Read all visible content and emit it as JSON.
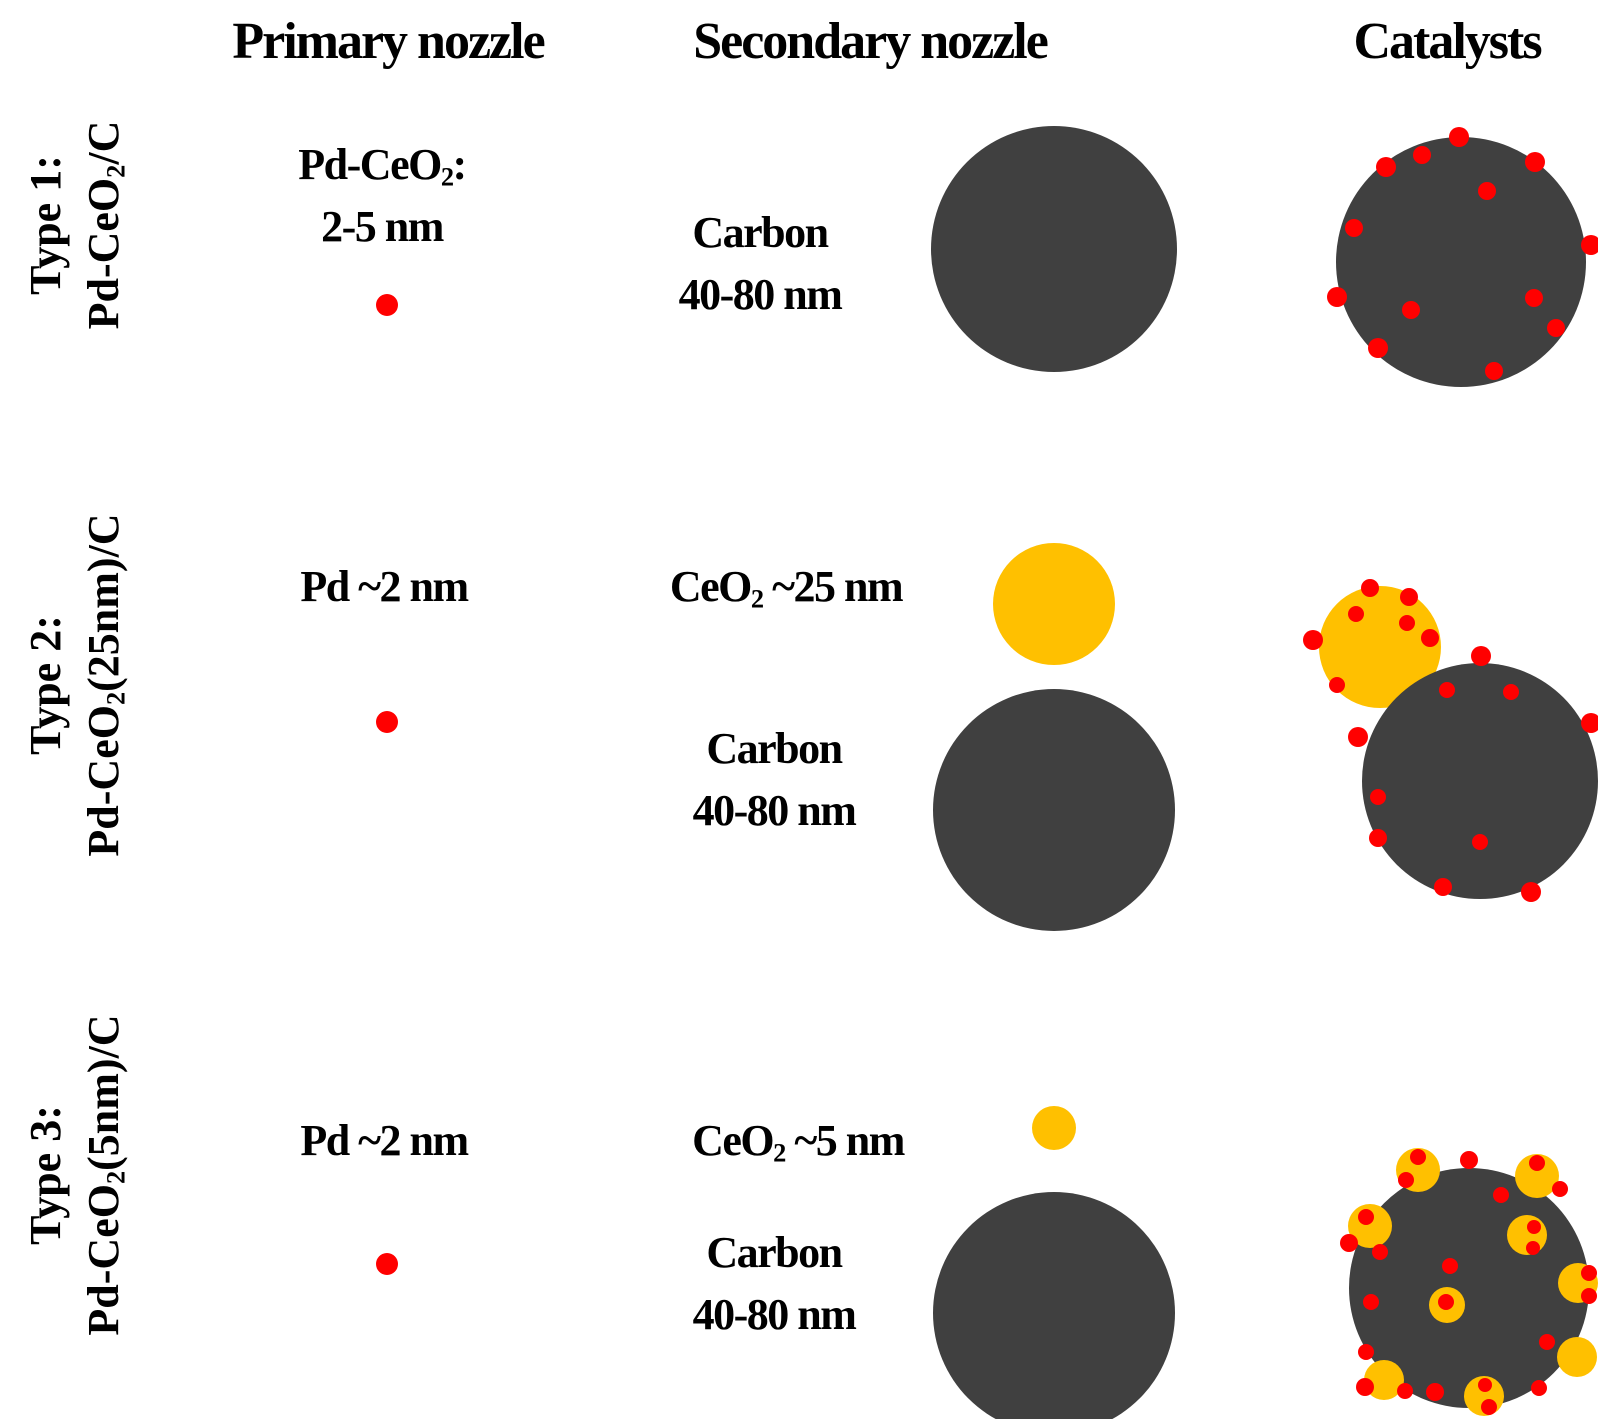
{
  "headers": {
    "primary": "Primary nozzle",
    "secondary": "Secondary nozzle",
    "catalysts": "Catalysts"
  },
  "colors": {
    "carbon": "#404040",
    "pd": "#ff0000",
    "ceo2": "#ffc000"
  },
  "rows": [
    {
      "type_label": "Type 1:",
      "catalyst_name": {
        "pre": "Pd-CeO",
        "sub": "2",
        "post": "/C"
      },
      "primary": {
        "line1_pre": "Pd-CeO",
        "line1_sub": "2",
        "line1_post": ":",
        "line2": "2-5 nm"
      },
      "secondary": {
        "carbon_line1": "Carbon",
        "carbon_line2": "40-80 nm"
      }
    },
    {
      "type_label": "Type 2:",
      "catalyst_name": {
        "pre": "Pd-CeO",
        "sub": "2",
        "post": "(25nm)/C"
      },
      "primary": {
        "text": "Pd ~2 nm"
      },
      "secondary": {
        "ceo2_pre": "CeO",
        "ceo2_sub": "2",
        "ceo2_post": " ~25 nm",
        "carbon_line1": "Carbon",
        "carbon_line2": "40-80 nm"
      }
    },
    {
      "type_label": "Type 3:",
      "catalyst_name": {
        "pre": "Pd-CeO",
        "sub": "2",
        "post": "(5nm)/C"
      },
      "primary": {
        "text": "Pd ~2 nm"
      },
      "secondary": {
        "ceo2_pre": "CeO",
        "ceo2_sub": "2",
        "ceo2_post": " ~5 nm",
        "carbon_line1": "Carbon",
        "carbon_line2": "40-80 nm"
      }
    }
  ]
}
